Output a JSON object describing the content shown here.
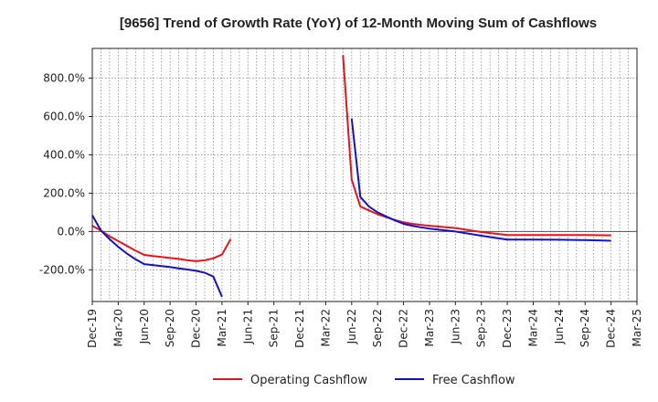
{
  "chart_data": {
    "type": "line",
    "title": "[9656]  Trend of Growth Rate (YoY) of 12-Month Moving Sum of Cashflows",
    "xlabel": "",
    "ylabel": "",
    "ylim": [
      -365,
      955
    ],
    "yticks": [
      -200,
      0,
      200,
      400,
      600,
      800
    ],
    "ytick_labels": [
      "-200.0%",
      "0.0%",
      "200.0%",
      "400.0%",
      "600.0%",
      "800.0%"
    ],
    "x_start": "Dec-19",
    "x_end": "Mar-25",
    "xtick_labels": [
      "Dec-19",
      "Mar-20",
      "Jun-20",
      "Sep-20",
      "Dec-20",
      "Mar-21",
      "Jun-21",
      "Sep-21",
      "Dec-21",
      "Mar-22",
      "Jun-22",
      "Sep-22",
      "Dec-22",
      "Mar-23",
      "Jun-23",
      "Sep-23",
      "Dec-23",
      "Mar-24",
      "Jun-24",
      "Sep-24",
      "Dec-24",
      "Mar-25"
    ],
    "grid": true,
    "legend_position": "bottom",
    "series": [
      {
        "name": "Operating Cashflow",
        "color": "#e8141c",
        "points": [
          [
            "Dec-19",
            30
          ],
          [
            "Jan-20",
            5
          ],
          [
            "Feb-20",
            -25
          ],
          [
            "Mar-20",
            -50
          ],
          [
            "Apr-20",
            -75
          ],
          [
            "May-20",
            -100
          ],
          [
            "Jun-20",
            -122
          ],
          [
            "Jul-20",
            -128
          ],
          [
            "Aug-20",
            -133
          ],
          [
            "Sep-20",
            -138
          ],
          [
            "Oct-20",
            -143
          ],
          [
            "Nov-20",
            -150
          ],
          [
            "Dec-20",
            -155
          ],
          [
            "Jan-21",
            -150
          ],
          [
            "Feb-21",
            -140
          ],
          [
            "Mar-21",
            -120
          ],
          [
            "Apr-21",
            -40
          ],
          [
            "May-22",
            920
          ],
          [
            "Jun-22",
            270
          ],
          [
            "Jul-22",
            130
          ],
          [
            "Aug-22",
            110
          ],
          [
            "Sep-22",
            90
          ],
          [
            "Oct-22",
            75
          ],
          [
            "Nov-22",
            60
          ],
          [
            "Dec-22",
            48
          ],
          [
            "Jan-23",
            40
          ],
          [
            "Feb-23",
            35
          ],
          [
            "Mar-23",
            30
          ],
          [
            "Jun-23",
            18
          ],
          [
            "Sep-23",
            -3
          ],
          [
            "Dec-23",
            -18
          ],
          [
            "Mar-24",
            -18
          ],
          [
            "Jun-24",
            -18
          ],
          [
            "Sep-24",
            -18
          ],
          [
            "Dec-24",
            -20
          ]
        ]
      },
      {
        "name": "Free Cashflow",
        "color": "#1212c8",
        "points": [
          [
            "Dec-19",
            85
          ],
          [
            "Jan-20",
            5
          ],
          [
            "Feb-20",
            -40
          ],
          [
            "Mar-20",
            -80
          ],
          [
            "Apr-20",
            -115
          ],
          [
            "May-20",
            -145
          ],
          [
            "Jun-20",
            -170
          ],
          [
            "Jul-20",
            -175
          ],
          [
            "Aug-20",
            -180
          ],
          [
            "Sep-20",
            -185
          ],
          [
            "Oct-20",
            -192
          ],
          [
            "Nov-20",
            -198
          ],
          [
            "Dec-20",
            -205
          ],
          [
            "Jan-21",
            -215
          ],
          [
            "Feb-21",
            -235
          ],
          [
            "Mar-21",
            -340
          ],
          [
            "Jun-22",
            590
          ],
          [
            "Jul-22",
            180
          ],
          [
            "Aug-22",
            130
          ],
          [
            "Sep-22",
            100
          ],
          [
            "Oct-22",
            78
          ],
          [
            "Nov-22",
            58
          ],
          [
            "Dec-22",
            40
          ],
          [
            "Jan-23",
            30
          ],
          [
            "Feb-23",
            22
          ],
          [
            "Mar-23",
            15
          ],
          [
            "Jun-23",
            0
          ],
          [
            "Sep-23",
            -22
          ],
          [
            "Dec-23",
            -42
          ],
          [
            "Mar-24",
            -42
          ],
          [
            "Jun-24",
            -43
          ],
          [
            "Sep-24",
            -45
          ],
          [
            "Dec-24",
            -48
          ]
        ]
      }
    ]
  }
}
